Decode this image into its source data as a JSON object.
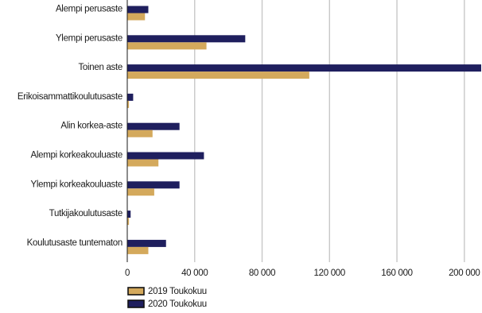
{
  "chart_data": {
    "type": "bar",
    "orientation": "horizontal",
    "title": "",
    "xlabel": "",
    "ylabel": "",
    "categories": [
      "Alempi perusaste",
      "Ylempi perusaste",
      "Toinen aste",
      "Erikoisammattikoulutusaste",
      "Alin korkea-aste",
      "Alempi korkeakouluaste",
      "Ylempi korkeakouluaste",
      "Tutkijakoulutusaste",
      "Koulutusaste tuntematon"
    ],
    "series": [
      {
        "name": "2019 Toukokuu",
        "color": "#d4a95c",
        "values": [
          10500,
          47000,
          108000,
          1000,
          15000,
          18500,
          16000,
          1000,
          12500
        ]
      },
      {
        "name": "2020 Toukokuu",
        "color": "#1f1f5e",
        "values": [
          12500,
          70000,
          210000,
          3500,
          31000,
          45500,
          31000,
          2000,
          23000
        ]
      }
    ],
    "xlim": [
      0,
      210000
    ],
    "xticks": [
      0,
      40000,
      80000,
      120000,
      160000,
      200000
    ],
    "xtick_labels": [
      "0",
      "40 000",
      "80 000",
      "120 000",
      "160 000",
      "200 000"
    ],
    "grid": true,
    "legend_position": "bottom-left"
  }
}
